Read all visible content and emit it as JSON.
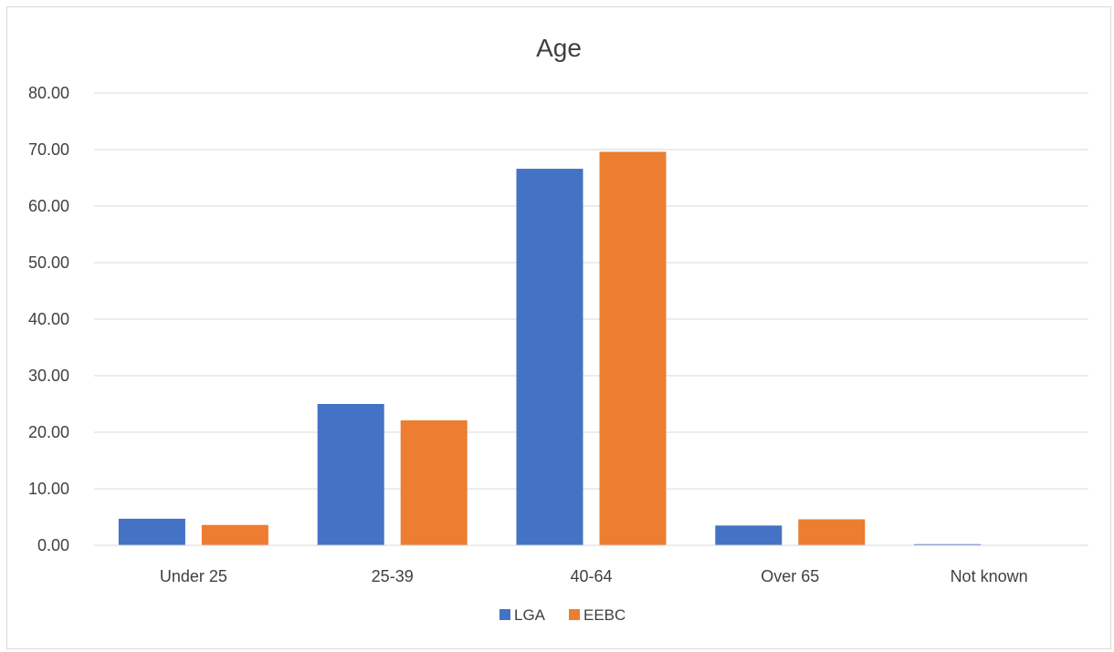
{
  "chart_data": {
    "type": "bar",
    "title": "Age",
    "xlabel": "",
    "ylabel": "",
    "categories": [
      "Under 25",
      "25-39",
      "40-64",
      "Over 65",
      "Not known"
    ],
    "series": [
      {
        "name": "LGA",
        "color": "#4472c4",
        "values": [
          4.7,
          25.0,
          66.6,
          3.5,
          0.2
        ]
      },
      {
        "name": "EEBC",
        "color": "#ed7d31",
        "values": [
          3.6,
          22.1,
          69.6,
          4.6,
          0.0
        ]
      }
    ],
    "ylim": [
      0,
      80
    ],
    "yticks": [
      "0.00",
      "10.00",
      "20.00",
      "30.00",
      "40.00",
      "50.00",
      "60.00",
      "70.00",
      "80.00"
    ],
    "grid": true,
    "legend_position": "bottom"
  }
}
